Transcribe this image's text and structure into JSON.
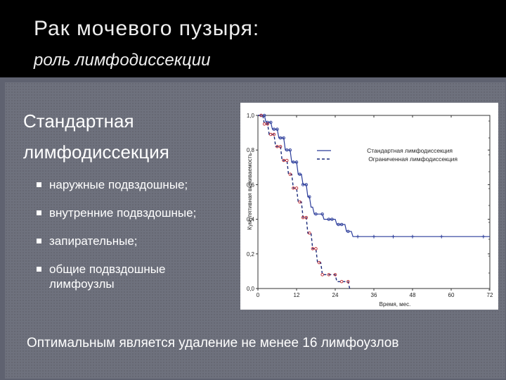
{
  "slide": {
    "title": "Рак мочевого пузыря:",
    "subtitle": "роль лимфодиссекции",
    "heading_line1": "Стандартная",
    "heading_line2": "лимфодиссекция",
    "bullets": [
      {
        "line1": "наружные подвздошные;",
        "line2": ""
      },
      {
        "line1": "внутренние подвздошные;",
        "line2": ""
      },
      {
        "line1": "запирательные;",
        "line2": ""
      },
      {
        "line1": "общие подвздошные",
        "line2": "лимфоузлы"
      }
    ],
    "footer": "Оптимальным является удаление не менее 16 лимфоузлов"
  },
  "chart_data": {
    "type": "line",
    "xlabel": "Время, мес.",
    "ylabel": "Кумулятивная выживаемость",
    "xlim": [
      0,
      72
    ],
    "ylim": [
      0,
      1.0
    ],
    "x_ticks": [
      "0",
      "12",
      "24",
      "36",
      "48",
      "60",
      "72"
    ],
    "y_ticks": [
      "0,0",
      "0,2",
      "0,4",
      "0,6",
      "0,8",
      "1,0"
    ],
    "legend_position": "top-right",
    "colors": {
      "standard": "#2b3c9a",
      "limited": "#1a2a7a",
      "censor_limited": "#c0282e",
      "censor_standard": "#2b3c9a"
    },
    "series": [
      {
        "name": "Стандартная лимфодиссекция",
        "style": "solid",
        "points": [
          [
            0,
            1.0
          ],
          [
            2,
            1.0
          ],
          [
            2.5,
            0.96
          ],
          [
            4,
            0.96
          ],
          [
            4.5,
            0.92
          ],
          [
            6,
            0.92
          ],
          [
            6.5,
            0.87
          ],
          [
            8,
            0.87
          ],
          [
            8.5,
            0.8
          ],
          [
            10,
            0.8
          ],
          [
            10.5,
            0.73
          ],
          [
            12,
            0.73
          ],
          [
            12.5,
            0.66
          ],
          [
            13.5,
            0.66
          ],
          [
            14,
            0.6
          ],
          [
            15,
            0.6
          ],
          [
            15.5,
            0.53
          ],
          [
            16,
            0.53
          ],
          [
            16.5,
            0.47
          ],
          [
            17,
            0.47
          ],
          [
            17.5,
            0.43
          ],
          [
            20,
            0.43
          ],
          [
            20.5,
            0.4
          ],
          [
            24,
            0.4
          ],
          [
            24.5,
            0.37
          ],
          [
            27,
            0.37
          ],
          [
            27.5,
            0.33
          ],
          [
            29,
            0.33
          ],
          [
            29.5,
            0.3
          ],
          [
            72,
            0.3
          ]
        ],
        "censor_x": [
          1,
          2,
          3,
          4,
          5,
          6,
          7,
          8,
          9,
          10,
          11,
          12,
          13,
          14,
          15,
          16,
          18,
          20,
          22,
          23,
          25,
          26,
          28,
          31,
          36,
          42,
          48,
          57,
          70
        ]
      },
      {
        "name": "Ограниченная лимфодиссекция",
        "style": "dashed",
        "points": [
          [
            0,
            1.0
          ],
          [
            1.5,
            1.0
          ],
          [
            2,
            0.95
          ],
          [
            3,
            0.95
          ],
          [
            3.5,
            0.89
          ],
          [
            5,
            0.89
          ],
          [
            5.5,
            0.82
          ],
          [
            7,
            0.82
          ],
          [
            7.5,
            0.74
          ],
          [
            9,
            0.74
          ],
          [
            9.5,
            0.66
          ],
          [
            10.5,
            0.66
          ],
          [
            11,
            0.58
          ],
          [
            12,
            0.58
          ],
          [
            12.5,
            0.5
          ],
          [
            13.5,
            0.5
          ],
          [
            14,
            0.41
          ],
          [
            15,
            0.41
          ],
          [
            15.5,
            0.32
          ],
          [
            16.5,
            0.32
          ],
          [
            17,
            0.23
          ],
          [
            18,
            0.23
          ],
          [
            18.5,
            0.15
          ],
          [
            19.5,
            0.15
          ],
          [
            20,
            0.08
          ],
          [
            24,
            0.08
          ],
          [
            24.5,
            0.04
          ],
          [
            28,
            0.04
          ],
          [
            28.5,
            0.0
          ]
        ],
        "censor_x": [
          1,
          2,
          3,
          4,
          5,
          6,
          7,
          8,
          9,
          10,
          11,
          12,
          13,
          14,
          15,
          16,
          17,
          18,
          19,
          20,
          22,
          24,
          26,
          28
        ]
      }
    ]
  }
}
